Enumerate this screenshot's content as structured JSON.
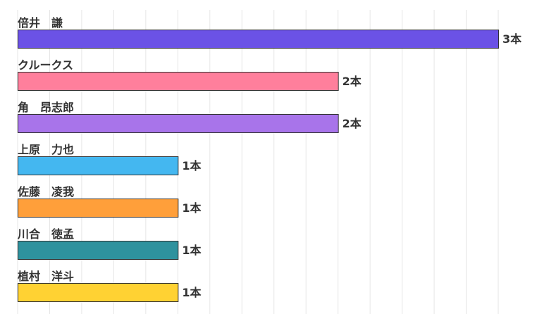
{
  "chart_data": {
    "type": "bar",
    "orientation": "horizontal",
    "title": "",
    "xlabel": "",
    "ylabel": "",
    "grid": true,
    "xlim": [
      0,
      3
    ],
    "bars": [
      {
        "label": "倍井　謙",
        "value": 3,
        "value_text": "3本",
        "color": "#6b52e6"
      },
      {
        "label": "クルークス",
        "value": 2,
        "value_text": "2本",
        "color": "#ff7f9c"
      },
      {
        "label": "角　昂志郎",
        "value": 2,
        "value_text": "2本",
        "color": "#a874ea"
      },
      {
        "label": "上原　力也",
        "value": 1,
        "value_text": "1本",
        "color": "#44b7f0"
      },
      {
        "label": "佐藤　凌我",
        "value": 1,
        "value_text": "1本",
        "color": "#ff9f3a"
      },
      {
        "label": "川合　徳孟",
        "value": 1,
        "value_text": "1本",
        "color": "#2e929e"
      },
      {
        "label": "植村　洋斗",
        "value": 1,
        "value_text": "1本",
        "color": "#ffd233"
      }
    ]
  }
}
